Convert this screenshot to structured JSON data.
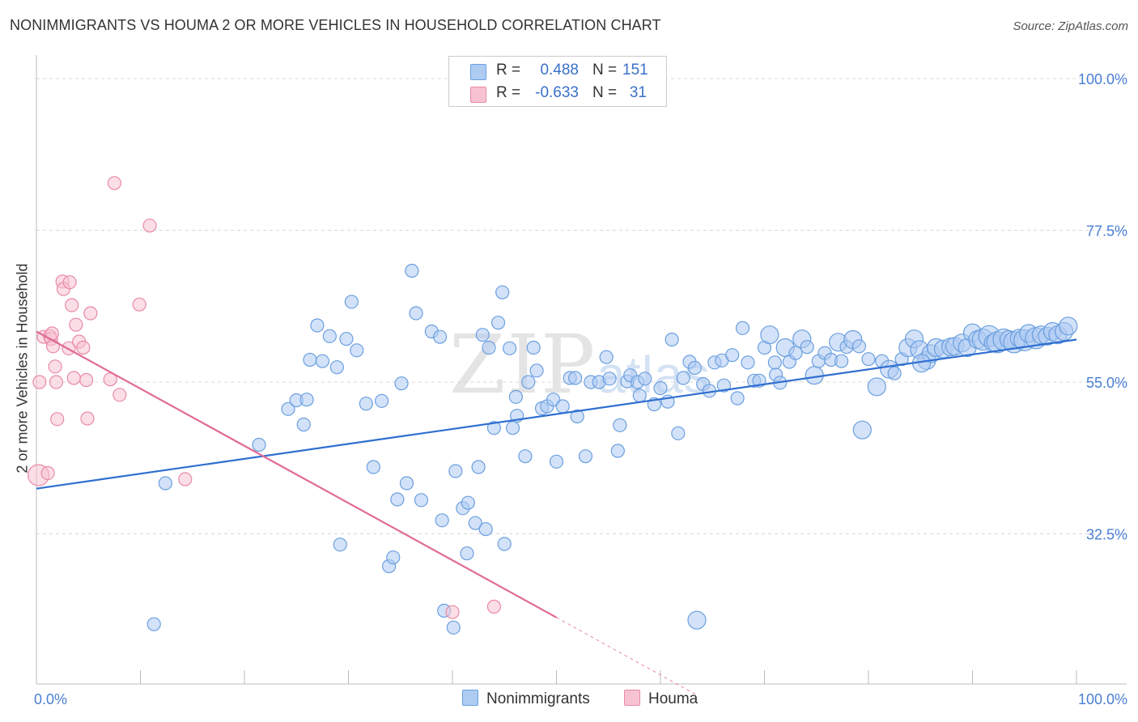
{
  "title": "NONIMMIGRANTS VS HOUMA 2 OR MORE VEHICLES IN HOUSEHOLD CORRELATION CHART",
  "source": "Source: ZipAtlas.com",
  "watermark": {
    "zip": "ZIP",
    "atlas": "atlas"
  },
  "legend": {
    "rows": [
      {
        "r_label": "R =",
        "r_value": "0.488",
        "n_label": "N =",
        "n_value": "151",
        "color": "#aecbf2",
        "stroke": "#6a9fe0"
      },
      {
        "r_label": "R =",
        "r_value": "-0.633",
        "n_label": "N =",
        "n_value": "31",
        "color": "#f7c3d2",
        "stroke": "#e88aa6"
      }
    ]
  },
  "bottom_legend": [
    {
      "label": "Nonimmigrants",
      "color": "#aecbf2",
      "stroke": "#6a9fe0"
    },
    {
      "label": "Houma",
      "color": "#f7c3d2",
      "stroke": "#e88aa6"
    }
  ],
  "chart_data": {
    "type": "scatter",
    "title": "NONIMMIGRANTS VS HOUMA 2 OR MORE VEHICLES IN HOUSEHOLD CORRELATION CHART",
    "xlabel": "",
    "ylabel": "2 or more Vehicles in Household",
    "xlim": [
      0,
      100
    ],
    "ylim": [
      10,
      100
    ],
    "x_tick_labels": [
      "0.0%",
      "100.0%"
    ],
    "y_ticks": [
      32.5,
      55.0,
      77.5,
      100.0
    ],
    "y_tick_labels": [
      "32.5%",
      "55.0%",
      "77.5%",
      "100.0%"
    ],
    "grid": "horizontal dashed",
    "legend_placement": "top-center",
    "series": [
      {
        "name": "Nonimmigrants",
        "color": "#6a9fe0",
        "fill": "#aecbf2",
        "trend": {
          "x": [
            0,
            100
          ],
          "y": [
            39.2,
            61.3
          ]
        },
        "points": [
          [
            11.3,
            19.1,
            1
          ],
          [
            12.4,
            40.0,
            1
          ],
          [
            21.4,
            45.7,
            1
          ],
          [
            24.2,
            51.0,
            1
          ],
          [
            25.7,
            48.7,
            1
          ],
          [
            25.0,
            52.3,
            1
          ],
          [
            26.0,
            52.4,
            1
          ],
          [
            26.3,
            58.3,
            1
          ],
          [
            27.0,
            63.4,
            1
          ],
          [
            27.5,
            58.1,
            1
          ],
          [
            28.2,
            61.8,
            1
          ],
          [
            28.9,
            57.2,
            1
          ],
          [
            29.2,
            30.9,
            1
          ],
          [
            29.8,
            61.4,
            1
          ],
          [
            30.3,
            66.9,
            1
          ],
          [
            30.8,
            59.7,
            1
          ],
          [
            31.7,
            51.8,
            1
          ],
          [
            32.4,
            42.4,
            1
          ],
          [
            33.2,
            52.2,
            1
          ],
          [
            33.9,
            27.7,
            1
          ],
          [
            34.3,
            29.0,
            1
          ],
          [
            34.7,
            37.6,
            1
          ],
          [
            35.1,
            54.8,
            1
          ],
          [
            35.6,
            40.0,
            1
          ],
          [
            36.1,
            71.5,
            1
          ],
          [
            36.5,
            65.2,
            1
          ],
          [
            37.0,
            37.5,
            1
          ],
          [
            38.0,
            62.5,
            1
          ],
          [
            38.8,
            61.7,
            1
          ],
          [
            39.0,
            34.5,
            1
          ],
          [
            39.2,
            21.1,
            1
          ],
          [
            40.1,
            18.6,
            1
          ],
          [
            40.3,
            41.8,
            1
          ],
          [
            41.0,
            36.3,
            1
          ],
          [
            41.5,
            37.1,
            1
          ],
          [
            41.4,
            29.6,
            1
          ],
          [
            42.2,
            34.1,
            1
          ],
          [
            42.5,
            42.4,
            1
          ],
          [
            42.9,
            62.0,
            1
          ],
          [
            43.2,
            33.2,
            1
          ],
          [
            43.5,
            60.1,
            1
          ],
          [
            44.0,
            48.2,
            1
          ],
          [
            44.4,
            63.8,
            1
          ],
          [
            44.8,
            68.3,
            1
          ],
          [
            45.0,
            31.0,
            1
          ],
          [
            45.5,
            60.0,
            1
          ],
          [
            45.8,
            48.2,
            1
          ],
          [
            46.1,
            52.8,
            1
          ],
          [
            46.2,
            50.0,
            1
          ],
          [
            47.0,
            44.0,
            1
          ],
          [
            47.3,
            55.0,
            1
          ],
          [
            47.8,
            60.1,
            1
          ],
          [
            48.1,
            56.7,
            1
          ],
          [
            48.6,
            51.1,
            1
          ],
          [
            49.1,
            51.4,
            1
          ],
          [
            49.7,
            52.4,
            1
          ],
          [
            50.0,
            43.2,
            1
          ],
          [
            50.6,
            51.4,
            1
          ],
          [
            51.3,
            55.6,
            1
          ],
          [
            51.8,
            55.6,
            1
          ],
          [
            52.0,
            49.9,
            1
          ],
          [
            52.8,
            44.0,
            1
          ],
          [
            53.3,
            55.0,
            1
          ],
          [
            54.1,
            55.0,
            1
          ],
          [
            54.8,
            58.7,
            1
          ],
          [
            55.1,
            55.5,
            1
          ],
          [
            55.9,
            44.8,
            1
          ],
          [
            56.1,
            48.6,
            1
          ],
          [
            56.8,
            55.1,
            1
          ],
          [
            57.1,
            56.0,
            1
          ],
          [
            57.8,
            55.0,
            1
          ],
          [
            58.0,
            53.0,
            1
          ],
          [
            58.5,
            55.5,
            1
          ],
          [
            59.4,
            51.7,
            1
          ],
          [
            60.0,
            54.1,
            1
          ],
          [
            60.7,
            52.1,
            1
          ],
          [
            61.1,
            61.3,
            1
          ],
          [
            61.7,
            47.4,
            1
          ],
          [
            62.2,
            55.6,
            1
          ],
          [
            62.8,
            58.0,
            1
          ],
          [
            63.3,
            57.1,
            1
          ],
          [
            64.1,
            54.7,
            1
          ],
          [
            64.7,
            53.7,
            1
          ],
          [
            65.2,
            57.9,
            1
          ],
          [
            65.9,
            58.2,
            1
          ],
          [
            66.1,
            54.5,
            1
          ],
          [
            66.9,
            59.0,
            1
          ],
          [
            67.4,
            52.6,
            1
          ],
          [
            67.9,
            63.0,
            1
          ],
          [
            68.4,
            57.9,
            1
          ],
          [
            69.0,
            55.2,
            1
          ],
          [
            69.5,
            55.2,
            1
          ],
          [
            70.0,
            60.1,
            1
          ],
          [
            70.5,
            62.0,
            2
          ],
          [
            71.1,
            56.1,
            1
          ],
          [
            71.5,
            54.9,
            1
          ],
          [
            72.0,
            60.1,
            2
          ],
          [
            72.4,
            58.0,
            1
          ],
          [
            73.0,
            59.3,
            1
          ],
          [
            73.6,
            61.4,
            2
          ],
          [
            74.1,
            60.2,
            1
          ],
          [
            74.8,
            56.0,
            2
          ],
          [
            75.2,
            58.1,
            1
          ],
          [
            75.8,
            59.3,
            1
          ],
          [
            76.4,
            58.3,
            1
          ],
          [
            77.1,
            60.9,
            2
          ],
          [
            77.4,
            58.1,
            1
          ],
          [
            77.9,
            60.2,
            1
          ],
          [
            78.5,
            61.3,
            2
          ],
          [
            79.1,
            60.3,
            1
          ],
          [
            79.4,
            47.9,
            2
          ],
          [
            80.0,
            58.4,
            1
          ],
          [
            80.8,
            54.3,
            2
          ],
          [
            81.3,
            58.1,
            1
          ],
          [
            82.0,
            56.9,
            2
          ],
          [
            82.5,
            56.3,
            1
          ],
          [
            83.2,
            58.4,
            1
          ],
          [
            83.8,
            60.1,
            2
          ],
          [
            84.4,
            61.4,
            2
          ],
          [
            84.9,
            59.8,
            2
          ],
          [
            85.6,
            58.2,
            2
          ],
          [
            86.0,
            59.2,
            2
          ],
          [
            86.5,
            60.1,
            2
          ],
          [
            87.2,
            59.9,
            2
          ],
          [
            87.9,
            60.2,
            2
          ],
          [
            88.3,
            60.3,
            2
          ],
          [
            89.0,
            60.8,
            2
          ],
          [
            89.5,
            60.1,
            2
          ],
          [
            90.0,
            62.3,
            2
          ],
          [
            90.5,
            61.3,
            2
          ],
          [
            91.0,
            61.3,
            3
          ],
          [
            91.6,
            61.8,
            3
          ],
          [
            92.0,
            60.8,
            2
          ],
          [
            92.4,
            60.9,
            3
          ],
          [
            93.0,
            61.3,
            3
          ],
          [
            93.5,
            61.3,
            2
          ],
          [
            94.0,
            60.9,
            3
          ],
          [
            94.5,
            61.5,
            2
          ],
          [
            95.0,
            61.2,
            3
          ],
          [
            95.4,
            62.2,
            2
          ],
          [
            96.1,
            61.5,
            3
          ],
          [
            96.6,
            62.0,
            2
          ],
          [
            97.2,
            61.8,
            2
          ],
          [
            97.7,
            62.5,
            2
          ],
          [
            98.2,
            62.0,
            2
          ],
          [
            98.8,
            62.5,
            2
          ],
          [
            99.2,
            63.3,
            2
          ],
          [
            63.5,
            19.7,
            2
          ],
          [
            85.1,
            57.8,
            2
          ],
          [
            71.0,
            57.9,
            1
          ]
        ]
      },
      {
        "name": "Houma",
        "color": "#e88aa6",
        "fill": "#f7c3d2",
        "trend": {
          "x": [
            0,
            50
          ],
          "y": [
            62.5,
            20.1
          ]
        },
        "trend_dashed": {
          "x": [
            50,
            63.5
          ],
          "y": [
            20.1,
            8.6
          ]
        },
        "points": [
          [
            0.2,
            41.2,
            3
          ],
          [
            0.3,
            55.0,
            1
          ],
          [
            0.7,
            61.7,
            1
          ],
          [
            1.1,
            41.5,
            1
          ],
          [
            1.3,
            61.8,
            1
          ],
          [
            1.4,
            61.4,
            1
          ],
          [
            1.5,
            62.2,
            1
          ],
          [
            1.6,
            60.3,
            1
          ],
          [
            1.8,
            57.3,
            1
          ],
          [
            1.9,
            55.0,
            1
          ],
          [
            2.0,
            49.5,
            1
          ],
          [
            2.5,
            69.9,
            1
          ],
          [
            2.6,
            68.8,
            1
          ],
          [
            3.1,
            60.0,
            1
          ],
          [
            3.2,
            69.8,
            1
          ],
          [
            3.4,
            66.4,
            1
          ],
          [
            3.6,
            55.6,
            1
          ],
          [
            3.8,
            63.5,
            1
          ],
          [
            4.1,
            61.0,
            1
          ],
          [
            4.5,
            60.1,
            1
          ],
          [
            4.8,
            55.3,
            1
          ],
          [
            4.9,
            49.6,
            1
          ],
          [
            5.2,
            65.2,
            1
          ],
          [
            7.1,
            55.4,
            1
          ],
          [
            7.5,
            84.5,
            1
          ],
          [
            8.0,
            53.1,
            1
          ],
          [
            9.9,
            66.5,
            1
          ],
          [
            10.9,
            78.2,
            1
          ],
          [
            14.3,
            40.6,
            1
          ],
          [
            40.0,
            20.9,
            1
          ],
          [
            44.0,
            21.7,
            1
          ]
        ]
      }
    ]
  }
}
